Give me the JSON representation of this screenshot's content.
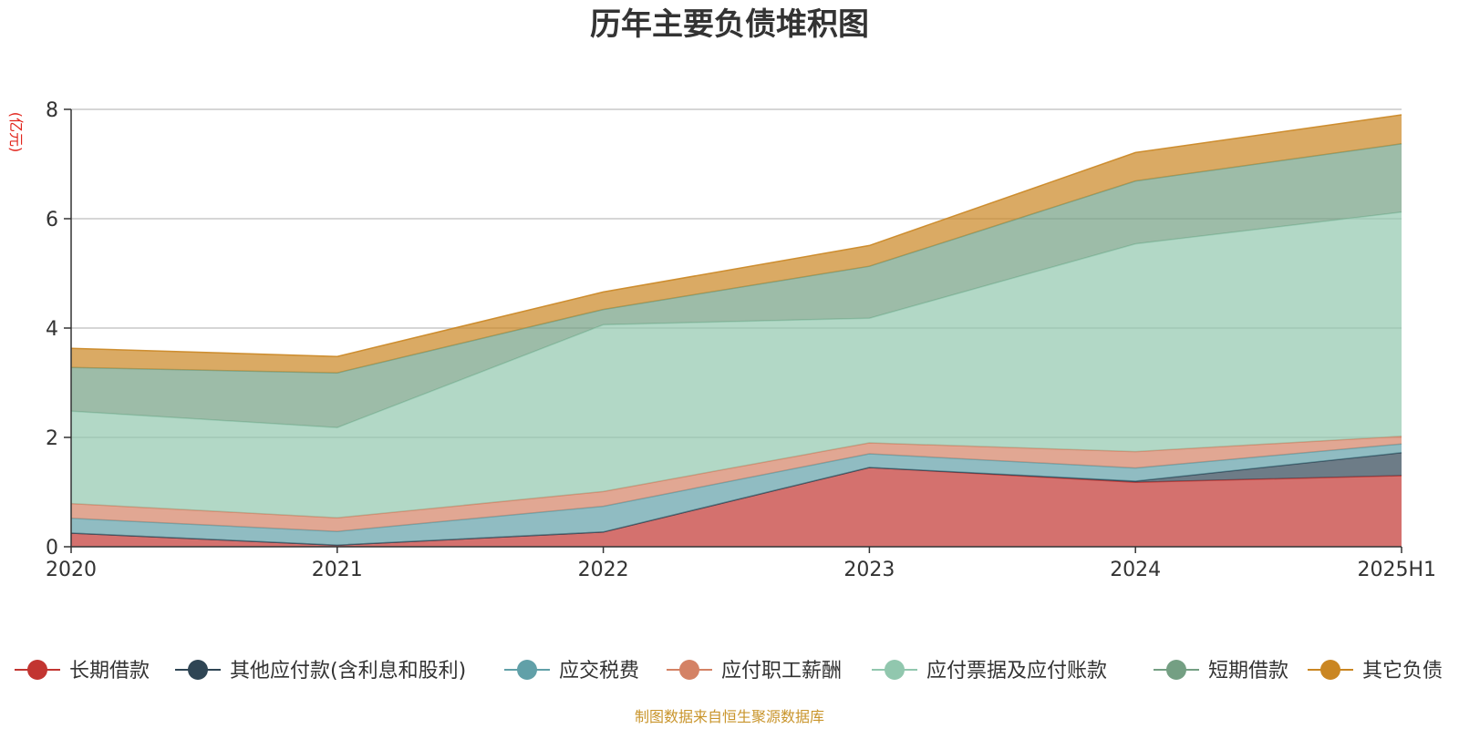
{
  "title": "历年主要负债堆积图",
  "unit": "(亿元)",
  "source": "制图数据来自恒生聚源数据库",
  "chart_data": {
    "type": "area",
    "stacked": true,
    "categories": [
      "2020",
      "2021",
      "2022",
      "2023",
      "2024",
      "2025H1"
    ],
    "ylim": [
      0,
      8
    ],
    "yticks": [
      0,
      2,
      4,
      6,
      8
    ],
    "grid": true,
    "legend_position": "bottom",
    "series": [
      {
        "name": "长期借款",
        "color": "#c23531",
        "values": [
          0.25,
          0.03,
          0.27,
          1.45,
          1.18,
          1.3
        ]
      },
      {
        "name": "其他应付款(含利息和股利)",
        "color": "#2f4554",
        "values": [
          0.0,
          0.0,
          0.0,
          0.0,
          0.02,
          0.42
        ]
      },
      {
        "name": "应交税费",
        "color": "#61a0a8",
        "values": [
          0.27,
          0.25,
          0.47,
          0.25,
          0.24,
          0.16
        ]
      },
      {
        "name": "应付职工薪酬",
        "color": "#d48265",
        "values": [
          0.27,
          0.25,
          0.27,
          0.2,
          0.3,
          0.14
        ]
      },
      {
        "name": "应付票据及应付账款",
        "color": "#91c7ae",
        "values": [
          1.69,
          1.65,
          3.05,
          2.28,
          3.8,
          4.1
        ]
      },
      {
        "name": "短期借款",
        "color": "#749f83",
        "values": [
          0.8,
          1.0,
          0.28,
          0.95,
          1.15,
          1.25
        ]
      },
      {
        "name": "其它负债",
        "color": "#ca8622",
        "values": [
          0.35,
          0.3,
          0.32,
          0.38,
          0.52,
          0.53
        ]
      }
    ]
  }
}
